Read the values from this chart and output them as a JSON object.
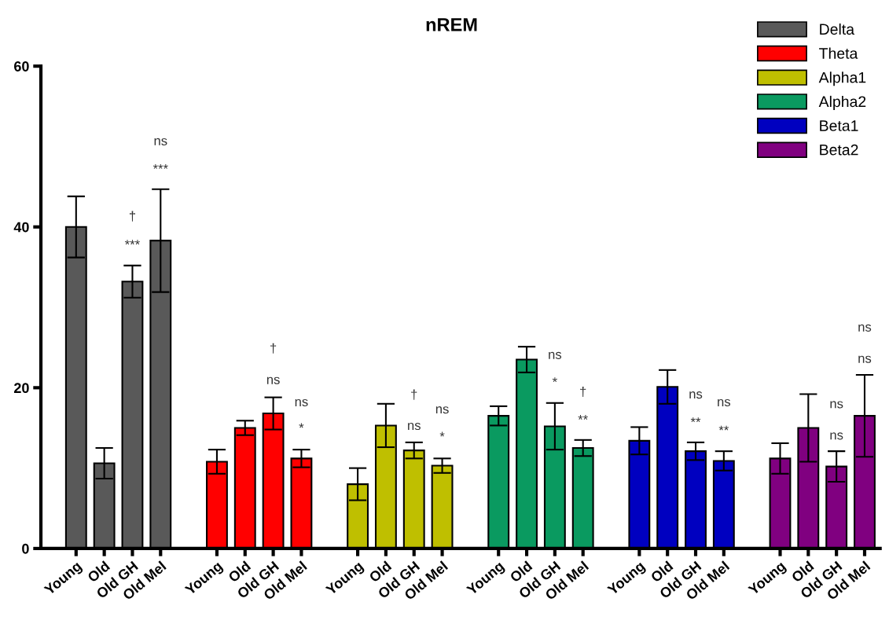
{
  "chart_data": {
    "type": "bar",
    "title": "nREM",
    "categories": [
      "Young",
      "Old",
      "Old GH",
      "Old Mel",
      null,
      "Young",
      "Old",
      "Old GH",
      "Old Mel",
      null,
      "Young",
      "Old",
      "Old GH",
      "Old Mel",
      null,
      "Young",
      "Old",
      "Old GH",
      "Old Mel",
      null,
      "Young",
      "Old",
      "Old GH",
      "Old Mel",
      null,
      "Young",
      "Old",
      "Old GH",
      "Old Mel"
    ],
    "series": [
      {
        "name": "Delta",
        "color": "#595959",
        "values": [
          40.0,
          10.6,
          33.2,
          38.3,
          null,
          null,
          null,
          null,
          null,
          null,
          null,
          null,
          null,
          null,
          null,
          null,
          null,
          null,
          null,
          null,
          null,
          null,
          null,
          null,
          null,
          null,
          null,
          null,
          null
        ],
        "errors": [
          3.8,
          1.9,
          2.0,
          6.4,
          null,
          null,
          null,
          null,
          null,
          null,
          null,
          null,
          null,
          null,
          null,
          null,
          null,
          null,
          null,
          null,
          null,
          null,
          null,
          null,
          null,
          null,
          null,
          null,
          null
        ]
      },
      {
        "name": "Theta",
        "color": "#ff0000",
        "values": [
          null,
          null,
          null,
          null,
          null,
          10.8,
          15.0,
          16.8,
          11.2,
          null,
          null,
          null,
          null,
          null,
          null,
          null,
          null,
          null,
          null,
          null,
          null,
          null,
          null,
          null,
          null,
          null,
          null,
          null,
          null
        ],
        "errors": [
          null,
          null,
          null,
          null,
          null,
          1.5,
          0.9,
          2.0,
          1.1,
          null,
          null,
          null,
          null,
          null,
          null,
          null,
          null,
          null,
          null,
          null,
          null,
          null,
          null,
          null,
          null,
          null,
          null,
          null,
          null
        ]
      },
      {
        "name": "Alpha1",
        "color": "#bfbf00",
        "values": [
          null,
          null,
          null,
          null,
          null,
          null,
          null,
          null,
          null,
          null,
          8.0,
          15.3,
          12.2,
          10.3,
          null,
          null,
          null,
          null,
          null,
          null,
          null,
          null,
          null,
          null,
          null,
          null,
          null,
          null,
          null
        ],
        "errors": [
          null,
          null,
          null,
          null,
          null,
          null,
          null,
          null,
          null,
          null,
          2.0,
          2.7,
          1.0,
          0.9,
          null,
          null,
          null,
          null,
          null,
          null,
          null,
          null,
          null,
          null,
          null,
          null,
          null,
          null,
          null
        ]
      },
      {
        "name": "Alpha2",
        "color": "#0a9a60",
        "values": [
          null,
          null,
          null,
          null,
          null,
          null,
          null,
          null,
          null,
          null,
          null,
          null,
          null,
          null,
          null,
          16.5,
          23.5,
          15.2,
          12.5,
          null,
          null,
          null,
          null,
          null,
          null,
          null,
          null,
          null,
          null
        ],
        "errors": [
          null,
          null,
          null,
          null,
          null,
          null,
          null,
          null,
          null,
          null,
          null,
          null,
          null,
          null,
          null,
          1.2,
          1.6,
          2.9,
          1.0,
          null,
          null,
          null,
          null,
          null,
          null,
          null,
          null,
          null,
          null
        ]
      },
      {
        "name": "Beta1",
        "color": "#0000c0",
        "values": [
          null,
          null,
          null,
          null,
          null,
          null,
          null,
          null,
          null,
          null,
          null,
          null,
          null,
          null,
          null,
          null,
          null,
          null,
          null,
          null,
          13.4,
          20.1,
          12.1,
          10.9,
          null,
          null,
          null,
          null,
          null
        ],
        "errors": [
          null,
          null,
          null,
          null,
          null,
          null,
          null,
          null,
          null,
          null,
          null,
          null,
          null,
          null,
          null,
          null,
          null,
          null,
          null,
          null,
          1.7,
          2.1,
          1.1,
          1.2,
          null,
          null,
          null,
          null,
          null
        ]
      },
      {
        "name": "Beta2",
        "color": "#800080",
        "values": [
          null,
          null,
          null,
          null,
          null,
          null,
          null,
          null,
          null,
          null,
          null,
          null,
          null,
          null,
          null,
          null,
          null,
          null,
          null,
          null,
          null,
          null,
          null,
          null,
          null,
          11.2,
          15.0,
          10.2,
          16.5
        ],
        "errors": [
          null,
          null,
          null,
          null,
          null,
          null,
          null,
          null,
          null,
          null,
          null,
          null,
          null,
          null,
          null,
          null,
          null,
          null,
          null,
          null,
          null,
          null,
          null,
          null,
          null,
          1.9,
          4.2,
          1.9,
          5.1
        ]
      }
    ],
    "ylim": [
      0,
      60
    ],
    "yticks": [
      0,
      20,
      40,
      60
    ],
    "grid": false,
    "legend": "top right",
    "annotations": [
      "***",
      "†",
      "***",
      "ns",
      "ns",
      "†",
      "*",
      "ns",
      "ns",
      "†",
      "*",
      "ns",
      "*",
      "ns",
      "**",
      "†",
      "**",
      "ns",
      "**",
      "ns",
      "ns",
      "ns",
      "ns",
      "ns"
    ]
  }
}
